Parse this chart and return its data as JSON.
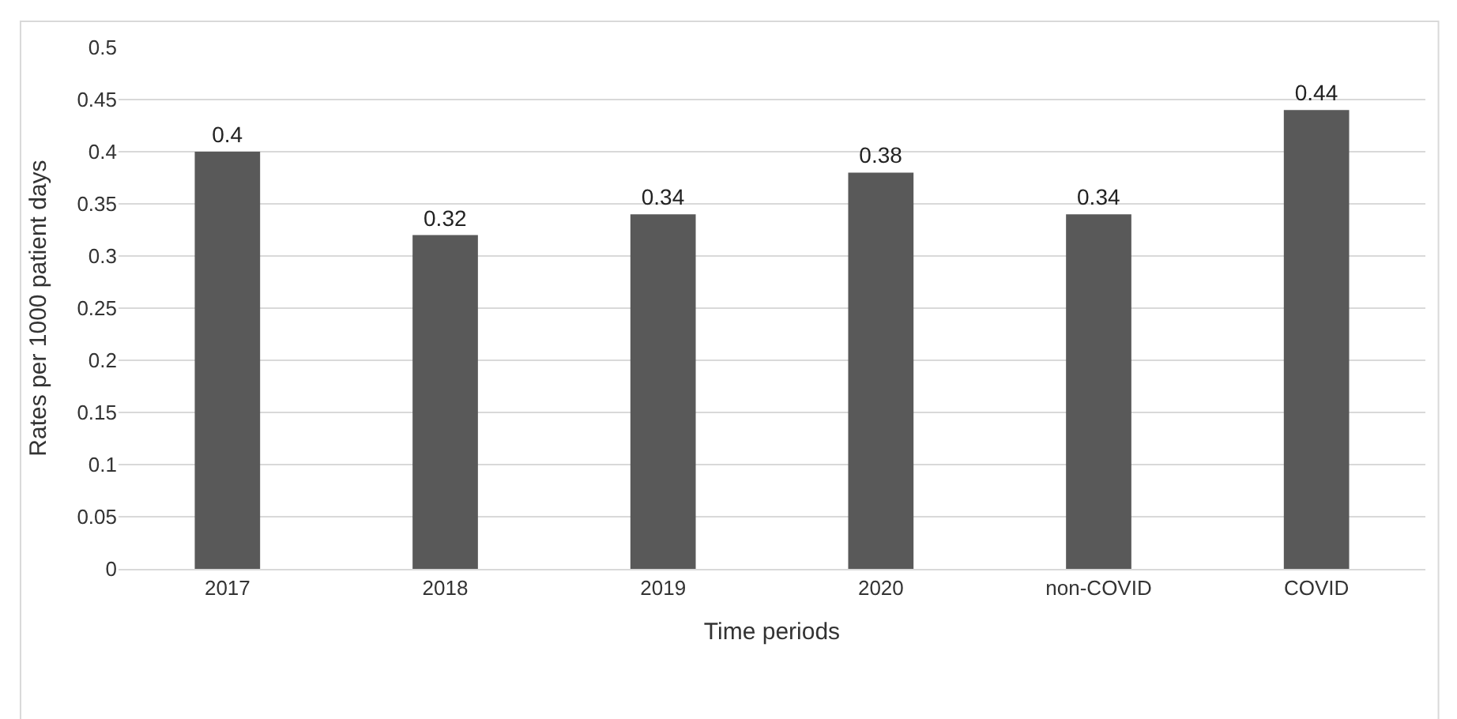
{
  "chart_data": {
    "type": "bar",
    "xlabel": "Time periods",
    "ylabel": "Rates per 1000 patient days",
    "categories": [
      "2017",
      "2018",
      "2019",
      "2020",
      "non-COVID",
      "COVID"
    ],
    "values": [
      0.4,
      0.32,
      0.34,
      0.38,
      0.34,
      0.44
    ],
    "color": "#595959",
    "ylim": [
      0,
      0.5
    ],
    "yticks": [
      0,
      0.05,
      0.1,
      0.15,
      0.2,
      0.25,
      0.3,
      0.35,
      0.4,
      0.45,
      0.5
    ],
    "grid": "y",
    "data_labels": true
  }
}
